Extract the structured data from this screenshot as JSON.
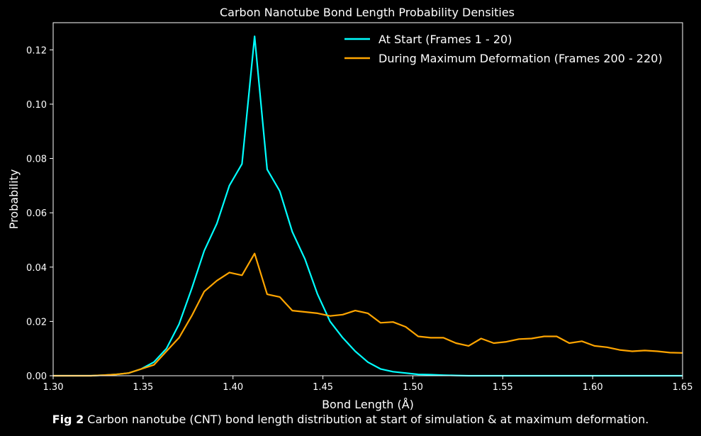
{
  "chart_data": {
    "type": "line",
    "title": "Carbon Nanotube Bond Length Probability Densities",
    "xlabel": "Bond Length (Å)",
    "ylabel": "Probability",
    "xlim": [
      1.3,
      1.65
    ],
    "ylim": [
      0.0,
      0.13
    ],
    "xticks": [
      "1.30",
      "1.35",
      "1.40",
      "1.45",
      "1.50",
      "1.55",
      "1.60",
      "1.65"
    ],
    "yticks": [
      "0.00",
      "0.02",
      "0.04",
      "0.06",
      "0.08",
      "0.10",
      "0.12"
    ],
    "grid": false,
    "legend_position": "top-right",
    "series": [
      {
        "name": "At Start (Frames 1 - 20)",
        "color": "#00ffff",
        "x": [
          1.3,
          1.307,
          1.314,
          1.321,
          1.328,
          1.335,
          1.342,
          1.349,
          1.356,
          1.363,
          1.37,
          1.377,
          1.384,
          1.391,
          1.398,
          1.405,
          1.412,
          1.419,
          1.426,
          1.433,
          1.44,
          1.447,
          1.454,
          1.461,
          1.468,
          1.475,
          1.482,
          1.489,
          1.496,
          1.503,
          1.51,
          1.517,
          1.524,
          1.531,
          1.538,
          1.545,
          1.552,
          1.559,
          1.566,
          1.573,
          1.58,
          1.587,
          1.594,
          1.601,
          1.608,
          1.615,
          1.622,
          1.629,
          1.636,
          1.643,
          1.65
        ],
        "y": [
          0.0,
          0.0,
          0.0,
          0.0,
          0.0002,
          0.0005,
          0.001,
          0.0025,
          0.005,
          0.01,
          0.019,
          0.032,
          0.046,
          0.056,
          0.07,
          0.078,
          0.125,
          0.076,
          0.068,
          0.053,
          0.043,
          0.03,
          0.02,
          0.014,
          0.009,
          0.005,
          0.0025,
          0.0015,
          0.001,
          0.0005,
          0.0004,
          0.0002,
          0.0001,
          0.0,
          0.0,
          0.0,
          0.0,
          0.0,
          0.0,
          0.0,
          0.0,
          0.0,
          0.0,
          0.0,
          0.0,
          0.0,
          0.0,
          0.0,
          0.0,
          0.0,
          0.0
        ]
      },
      {
        "name": "During Maximum Deformation (Frames 200 - 220)",
        "color": "#ffa500",
        "x": [
          1.3,
          1.307,
          1.314,
          1.321,
          1.328,
          1.335,
          1.342,
          1.349,
          1.356,
          1.363,
          1.37,
          1.377,
          1.384,
          1.391,
          1.398,
          1.405,
          1.412,
          1.419,
          1.426,
          1.433,
          1.44,
          1.447,
          1.454,
          1.461,
          1.468,
          1.475,
          1.482,
          1.489,
          1.496,
          1.503,
          1.51,
          1.517,
          1.524,
          1.531,
          1.538,
          1.545,
          1.552,
          1.559,
          1.566,
          1.573,
          1.58,
          1.587,
          1.594,
          1.601,
          1.608,
          1.615,
          1.622,
          1.629,
          1.636,
          1.643,
          1.65
        ],
        "y": [
          0.0,
          0.0,
          0.0,
          0.0,
          0.0002,
          0.0005,
          0.001,
          0.0025,
          0.004,
          0.009,
          0.014,
          0.022,
          0.031,
          0.035,
          0.038,
          0.037,
          0.045,
          0.03,
          0.029,
          0.024,
          0.0235,
          0.023,
          0.022,
          0.0225,
          0.024,
          0.023,
          0.0195,
          0.0198,
          0.018,
          0.0145,
          0.014,
          0.014,
          0.012,
          0.011,
          0.0137,
          0.012,
          0.0125,
          0.0135,
          0.0137,
          0.0145,
          0.0145,
          0.012,
          0.0127,
          0.011,
          0.0105,
          0.0095,
          0.009,
          0.0093,
          0.009,
          0.0085,
          0.0084
        ]
      }
    ]
  },
  "caption": {
    "bold": "Fig 2",
    "text": " Carbon nanotube (CNT) bond length distribution at start of simulation & at maximum deformation."
  }
}
